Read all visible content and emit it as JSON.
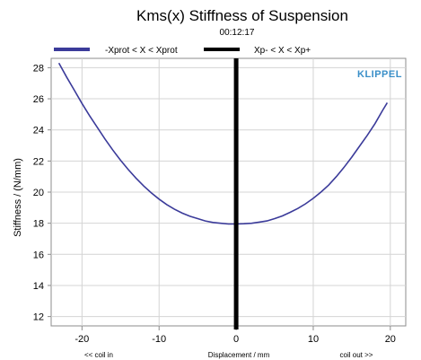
{
  "chart_data": {
    "type": "line",
    "title": "Kms(x) Stiffness of Suspension",
    "subtitle": "00:12:17",
    "xlabel": "Displacement / mm",
    "ylabel": "Stiffness / (N/mm)",
    "x_hint_left": "<< coil in",
    "x_hint_right": "coil out >>",
    "brand": "KLIPPEL",
    "xlim": [
      -24,
      22
    ],
    "ylim": [
      11.4,
      28.6
    ],
    "xticks": [
      -20,
      -10,
      0,
      10,
      20
    ],
    "yticks": [
      12,
      14,
      16,
      18,
      20,
      22,
      24,
      26,
      28
    ],
    "grid": true,
    "legend_position": "top",
    "series": [
      {
        "name": "-Xprot < X < Xprot",
        "color": "#3b3b9a",
        "x": [
          -23,
          -22,
          -21,
          -20,
          -19,
          -18,
          -17,
          -16,
          -15,
          -14,
          -13,
          -12,
          -11,
          -10,
          -9,
          -8,
          -7,
          -6,
          -5,
          -4,
          -3,
          -2,
          -1,
          0,
          1,
          2,
          3,
          4,
          5,
          6,
          7,
          8,
          9,
          10,
          11,
          12,
          13,
          14,
          15,
          16,
          17,
          18,
          19,
          19.6
        ],
        "y": [
          28.3,
          27.4,
          26.55,
          25.7,
          24.9,
          24.15,
          23.4,
          22.7,
          22.05,
          21.45,
          20.9,
          20.4,
          19.95,
          19.55,
          19.2,
          18.9,
          18.65,
          18.45,
          18.3,
          18.15,
          18.05,
          18.0,
          17.95,
          17.95,
          17.97,
          18.0,
          18.07,
          18.15,
          18.3,
          18.47,
          18.7,
          18.95,
          19.25,
          19.6,
          20.0,
          20.45,
          21.0,
          21.6,
          22.25,
          22.95,
          23.65,
          24.4,
          25.25,
          25.75
        ]
      }
    ],
    "markers": [
      {
        "name": "Xp- < X < Xp+",
        "color": "#000000",
        "x": 0
      }
    ]
  },
  "colors": {
    "grid": "#d4d4d4",
    "axes": "#8c8c8c",
    "brand": "#3a8fc8"
  }
}
